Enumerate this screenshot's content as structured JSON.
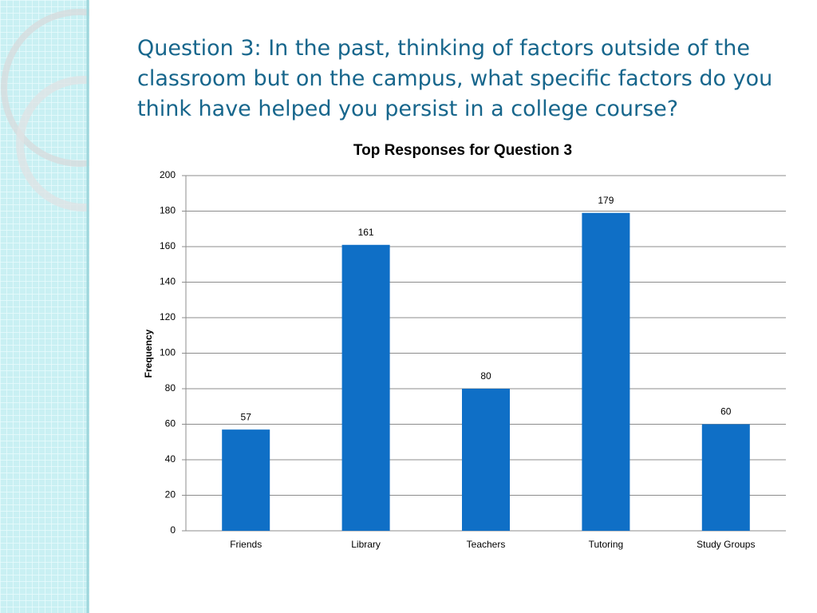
{
  "heading": "Question 3: In the past, thinking of factors outside of the classroom but on the campus, what specific factors do you think have helped you persist in a college course?",
  "chart_data": {
    "type": "bar",
    "title": "Top Responses for Question 3",
    "y_label": "Frequency",
    "categories": [
      "Friends",
      "Library",
      "Teachers",
      "Tutoring",
      "Study Groups"
    ],
    "values": [
      57,
      161,
      80,
      179,
      60
    ],
    "color": "#0f6fc6",
    "ylim": [
      0,
      200
    ],
    "yticks": [
      0,
      20,
      40,
      60,
      80,
      100,
      120,
      140,
      160,
      180,
      200
    ],
    "grid": true
  }
}
